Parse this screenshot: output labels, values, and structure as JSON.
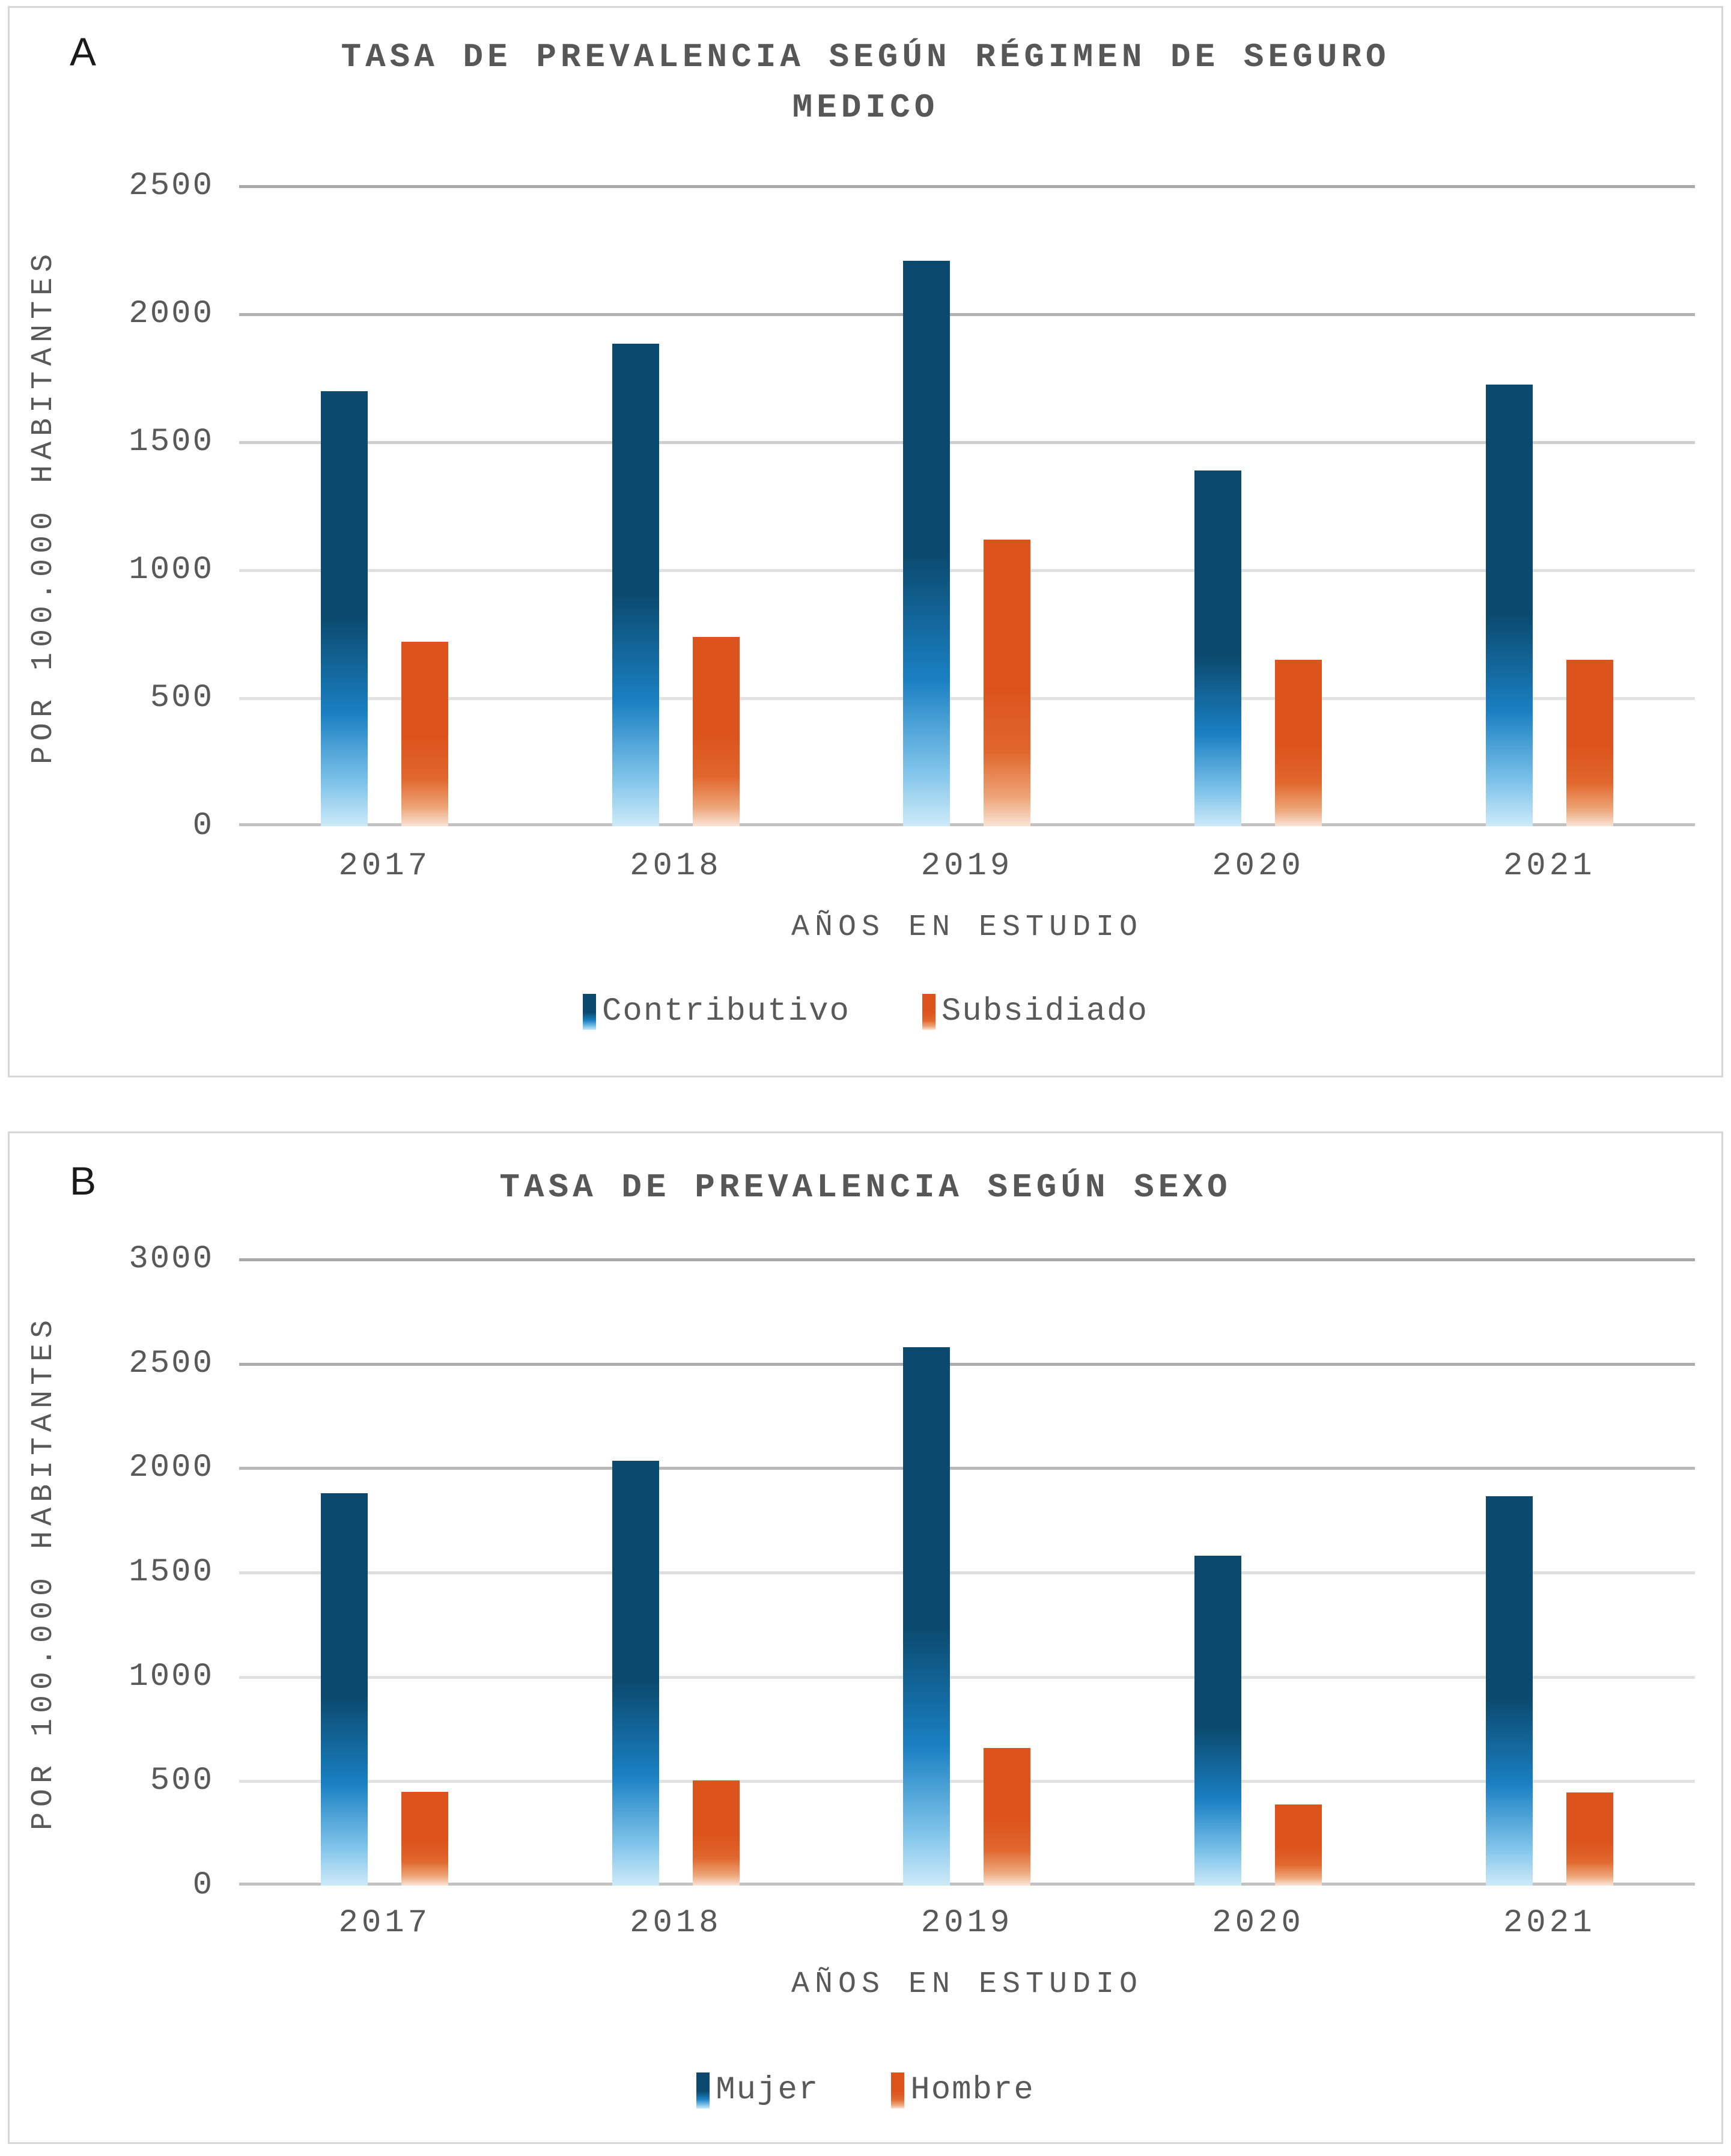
{
  "colors": {
    "text_gray": "#595959",
    "title_gray": "#575757",
    "panel_border": "#d6d6d6",
    "panel_letter": "#1a1a1a",
    "blue_bar_top": "#0b4a6e",
    "blue_bar_bottom": "#cdeaf8",
    "orange_bar_top": "#dc541c",
    "orange_bar_bottom": "#f9e4d6"
  },
  "panels": [
    {
      "letter": "A",
      "title_lines": [
        "TASA DE PREVALENCIA SEGÚN RÉGIMEN DE SEGURO",
        "MEDICO"
      ],
      "y_axis_title": "POR 100.000 HABITANTES",
      "x_axis_title": "AÑOS EN ESTUDIO",
      "chart_data": {
        "type": "bar",
        "categories": [
          "2017",
          "2018",
          "2019",
          "2020",
          "2021"
        ],
        "series": [
          {
            "name": "Contributivo",
            "values": [
              1700,
              1885,
              2210,
              1390,
              1725
            ],
            "gradient": [
              "#0b4a6e",
              "#0b4a6e",
              "#1a80c2",
              "#7ec3e9",
              "#cdeaf8"
            ]
          },
          {
            "name": "Subsidiado",
            "values": [
              720,
              740,
              1120,
              650,
              650
            ],
            "gradient": [
              "#dc541c",
              "#dc541c",
              "#e0672d",
              "#eda578",
              "#f9e4d6"
            ]
          }
        ],
        "ylim": [
          0,
          2500
        ],
        "yticks": [
          {
            "value": 2500,
            "line_color": "#a8a8a8"
          },
          {
            "value": 2000,
            "line_color": "#b2b2b2"
          },
          {
            "value": 1500,
            "line_color": "#cfcfcf"
          },
          {
            "value": 1000,
            "line_color": "#e0e0e0"
          },
          {
            "value": 500,
            "line_color": "#e2e2e2"
          },
          {
            "value": 0,
            "line_color": "#c2c2c2"
          }
        ],
        "grid": true,
        "legend_position": "bottom"
      }
    },
    {
      "letter": "B",
      "title_lines": [
        "TASA DE PREVALENCIA SEGÚN SEXO"
      ],
      "y_axis_title": "POR 100.000 HABITANTES",
      "x_axis_title": "AÑOS EN ESTUDIO",
      "chart_data": {
        "type": "bar",
        "categories": [
          "2017",
          "2018",
          "2019",
          "2020",
          "2021"
        ],
        "series": [
          {
            "name": "Mujer",
            "values": [
              1880,
              2035,
              2580,
              1580,
              1865
            ],
            "gradient": [
              "#0b4a6e",
              "#0b4a6e",
              "#1a80c2",
              "#7ec3e9",
              "#cdeaf8"
            ]
          },
          {
            "name": "Hombre",
            "values": [
              450,
              505,
              660,
              390,
              445
            ],
            "gradient": [
              "#dc541c",
              "#dc541c",
              "#e0672d",
              "#eda578",
              "#f9e4d6"
            ]
          }
        ],
        "ylim": [
          0,
          3000
        ],
        "yticks": [
          {
            "value": 3000,
            "line_color": "#a8a8a8"
          },
          {
            "value": 2500,
            "line_color": "#acacac"
          },
          {
            "value": 2000,
            "line_color": "#b8b8b8"
          },
          {
            "value": 1500,
            "line_color": "#dedede"
          },
          {
            "value": 1000,
            "line_color": "#e0e0e0"
          },
          {
            "value": 500,
            "line_color": "#e2e2e2"
          },
          {
            "value": 0,
            "line_color": "#c2c2c2"
          }
        ],
        "grid": true,
        "legend_position": "bottom"
      }
    }
  ]
}
